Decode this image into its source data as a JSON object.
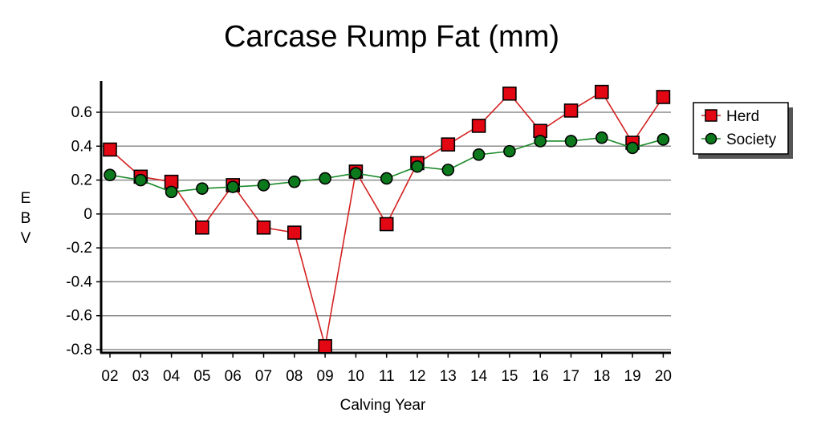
{
  "chart_data": {
    "type": "line",
    "title": "Carcase Rump Fat (mm)",
    "xlabel": "Calving Year",
    "ylabel": "EBV",
    "categories": [
      "02",
      "03",
      "04",
      "05",
      "06",
      "07",
      "08",
      "09",
      "10",
      "11",
      "12",
      "13",
      "14",
      "15",
      "16",
      "17",
      "18",
      "19",
      "20"
    ],
    "ylim": [
      -0.8,
      0.8
    ],
    "yticks": [
      0.6,
      0.4,
      0.2,
      0,
      -0.2,
      -0.4,
      -0.6,
      -0.8
    ],
    "ytick_labels": [
      "0.6",
      "0.4",
      "0.2",
      "0",
      "-0.2",
      "-0.4",
      "-0.6",
      "-0.8"
    ],
    "grid": true,
    "legend_position": "top-right",
    "series": [
      {
        "name": "Herd",
        "marker": "square",
        "color": "#e30613",
        "line_color": "#d42020",
        "values": [
          0.38,
          0.22,
          0.19,
          -0.08,
          0.17,
          -0.08,
          -0.11,
          -0.78,
          0.25,
          -0.06,
          0.3,
          0.41,
          0.52,
          0.71,
          0.49,
          0.61,
          0.72,
          0.42,
          0.69
        ]
      },
      {
        "name": "Society",
        "marker": "circle",
        "color": "#0c7a1c",
        "line_color": "#1d8a2a",
        "values": [
          0.23,
          0.2,
          0.13,
          0.15,
          0.16,
          0.17,
          0.19,
          0.21,
          0.24,
          0.21,
          0.28,
          0.26,
          0.35,
          0.37,
          0.43,
          0.43,
          0.45,
          0.39,
          0.44
        ]
      }
    ]
  }
}
